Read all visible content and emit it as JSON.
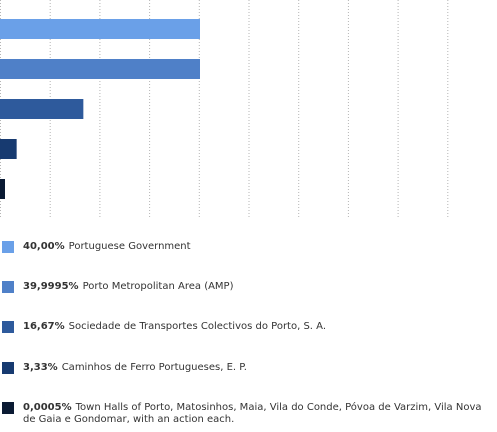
{
  "chart_data": {
    "type": "bar",
    "orientation": "horizontal",
    "xlim": [
      0,
      40
    ],
    "grid": true,
    "legend_position": "bottom",
    "series": [
      {
        "value": 40.0,
        "value_label": "40,00%",
        "label": "Portuguese Government",
        "color": "#6aa0e8"
      },
      {
        "value": 39.9995,
        "value_label": "39,9995%",
        "label": "Porto Metropolitan Area (AMP)",
        "color": "#4f80c8"
      },
      {
        "value": 16.67,
        "value_label": "16,67%",
        "label": "Sociedade de Transportes Colectivos do Porto, S. A.",
        "color": "#2e5a9c"
      },
      {
        "value": 3.33,
        "value_label": "3,33%",
        "label": "Caminhos de Ferro Portugueses, E. P.",
        "color": "#173a70"
      },
      {
        "value": 0.0005,
        "value_label": "0,0005%",
        "label": "Town Halls of Porto, Matosinhos, Maia, Vila do Conde, Póvoa de Varzim, Vila Nova de Gaia e Gondomar, with an action each.",
        "color": "#0a1a33"
      }
    ]
  }
}
